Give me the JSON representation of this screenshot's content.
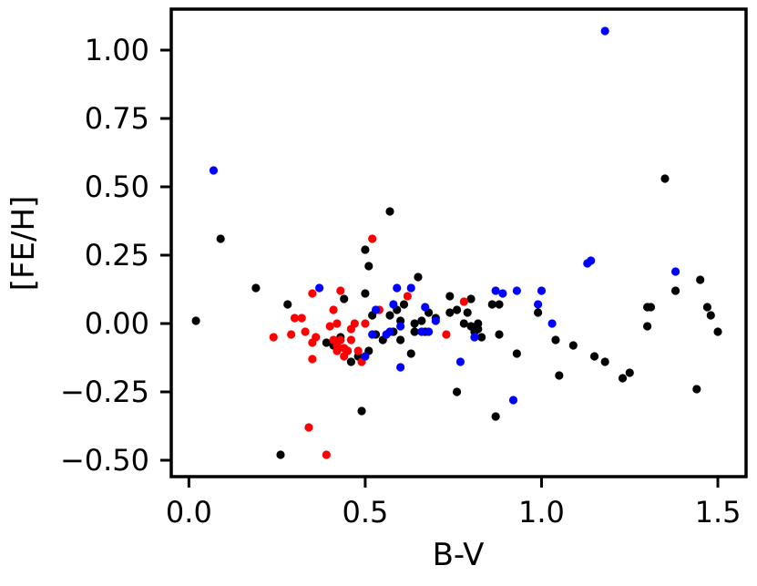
{
  "chart_data": {
    "type": "scatter",
    "title": "",
    "xlabel": "B-V",
    "ylabel": "[FE/H]",
    "xlim": [
      -0.05,
      1.58
    ],
    "ylim": [
      -0.56,
      1.15
    ],
    "xticks": [
      0.0,
      0.5,
      1.0,
      1.5
    ],
    "xtick_labels": [
      "0.0",
      "0.5",
      "1.0",
      "1.5"
    ],
    "yticks": [
      -0.5,
      -0.25,
      0.0,
      0.25,
      0.5,
      0.75,
      1.0
    ],
    "ytick_labels": [
      "−0.50",
      "−0.25",
      "0.00",
      "0.25",
      "0.50",
      "0.75",
      "1.00"
    ],
    "grid": false,
    "legend": "none",
    "series": [
      {
        "color": "#000000",
        "points": [
          [
            0.02,
            0.01
          ],
          [
            0.09,
            0.31
          ],
          [
            0.19,
            0.13
          ],
          [
            0.26,
            -0.48
          ],
          [
            0.28,
            0.07
          ],
          [
            0.39,
            -0.07
          ],
          [
            0.41,
            -0.08
          ],
          [
            0.43,
            -0.05
          ],
          [
            0.44,
            0.09
          ],
          [
            0.45,
            -0.1
          ],
          [
            0.46,
            -0.14
          ],
          [
            0.48,
            -0.12
          ],
          [
            0.49,
            -0.32
          ],
          [
            0.5,
            0.27
          ],
          [
            0.5,
            0.11
          ],
          [
            0.51,
            0.21
          ],
          [
            0.51,
            -0.1
          ],
          [
            0.52,
            0.03
          ],
          [
            0.53,
            -0.04
          ],
          [
            0.55,
            -0.06
          ],
          [
            0.57,
            0.41
          ],
          [
            0.57,
            0.03
          ],
          [
            0.58,
            -0.03
          ],
          [
            0.59,
            0.05
          ],
          [
            0.6,
            0.01
          ],
          [
            0.6,
            -0.06
          ],
          [
            0.61,
            0.07
          ],
          [
            0.63,
            -0.11
          ],
          [
            0.64,
            0.0
          ],
          [
            0.64,
            -0.03
          ],
          [
            0.65,
            0.17
          ],
          [
            0.66,
            0.01
          ],
          [
            0.67,
            -0.03
          ],
          [
            0.68,
            0.04
          ],
          [
            0.7,
            0.02
          ],
          [
            0.74,
            0.1
          ],
          [
            0.74,
            0.04
          ],
          [
            0.76,
            -0.25
          ],
          [
            0.76,
            0.05
          ],
          [
            0.78,
            0.0
          ],
          [
            0.79,
            0.04
          ],
          [
            0.8,
            -0.01
          ],
          [
            0.8,
            0.09
          ],
          [
            0.81,
            -0.03
          ],
          [
            0.82,
            0.0
          ],
          [
            0.82,
            -0.02
          ],
          [
            0.83,
            -0.05
          ],
          [
            0.86,
            0.07
          ],
          [
            0.87,
            -0.34
          ],
          [
            0.88,
            -0.04
          ],
          [
            0.88,
            0.07
          ],
          [
            0.93,
            -0.11
          ],
          [
            0.99,
            0.04
          ],
          [
            1.04,
            -0.06
          ],
          [
            1.05,
            -0.19
          ],
          [
            1.09,
            -0.08
          ],
          [
            1.15,
            -0.12
          ],
          [
            1.18,
            -0.14
          ],
          [
            1.23,
            -0.2
          ],
          [
            1.25,
            -0.18
          ],
          [
            1.3,
            -0.01
          ],
          [
            1.3,
            0.06
          ],
          [
            1.31,
            0.06
          ],
          [
            1.35,
            0.53
          ],
          [
            1.38,
            0.12
          ],
          [
            1.44,
            -0.24
          ],
          [
            1.45,
            0.16
          ],
          [
            1.47,
            0.06
          ],
          [
            1.48,
            0.03
          ],
          [
            1.5,
            -0.03
          ]
        ]
      },
      {
        "color": "#ff0000",
        "points": [
          [
            0.24,
            -0.05
          ],
          [
            0.29,
            -0.04
          ],
          [
            0.3,
            0.02
          ],
          [
            0.32,
            0.02
          ],
          [
            0.33,
            -0.03
          ],
          [
            0.34,
            -0.38
          ],
          [
            0.35,
            0.11
          ],
          [
            0.35,
            -0.07
          ],
          [
            0.35,
            -0.13
          ],
          [
            0.36,
            -0.05
          ],
          [
            0.39,
            -0.48
          ],
          [
            0.4,
            -0.01
          ],
          [
            0.41,
            0.05
          ],
          [
            0.41,
            -0.06
          ],
          [
            0.42,
            -0.08
          ],
          [
            0.42,
            -0.1
          ],
          [
            0.42,
            0.0
          ],
          [
            0.43,
            -0.06
          ],
          [
            0.43,
            0.12
          ],
          [
            0.44,
            -0.09
          ],
          [
            0.44,
            -0.12
          ],
          [
            0.45,
            -0.1
          ],
          [
            0.46,
            -0.06
          ],
          [
            0.46,
            -0.02
          ],
          [
            0.47,
            0.0
          ],
          [
            0.48,
            -0.1
          ],
          [
            0.49,
            -0.14
          ],
          [
            0.5,
            0.0
          ],
          [
            0.52,
            0.31
          ],
          [
            0.54,
            0.05
          ],
          [
            0.62,
            0.1
          ],
          [
            0.73,
            -0.04
          ],
          [
            0.78,
            0.08
          ]
        ]
      },
      {
        "color": "#0000ff",
        "points": [
          [
            0.07,
            0.56
          ],
          [
            0.37,
            0.13
          ],
          [
            0.5,
            -0.12
          ],
          [
            0.52,
            -0.04
          ],
          [
            0.53,
            0.05
          ],
          [
            0.56,
            -0.04
          ],
          [
            0.57,
            -0.03
          ],
          [
            0.58,
            0.07
          ],
          [
            0.59,
            0.13
          ],
          [
            0.6,
            -0.01
          ],
          [
            0.6,
            -0.16
          ],
          [
            0.63,
            0.13
          ],
          [
            0.66,
            -0.03
          ],
          [
            0.67,
            0.06
          ],
          [
            0.68,
            -0.03
          ],
          [
            0.7,
            0.01
          ],
          [
            0.77,
            -0.14
          ],
          [
            0.81,
            -0.05
          ],
          [
            0.87,
            0.12
          ],
          [
            0.89,
            0.11
          ],
          [
            0.92,
            -0.28
          ],
          [
            0.93,
            0.12
          ],
          [
            0.99,
            0.07
          ],
          [
            1.0,
            0.12
          ],
          [
            1.03,
            0.0
          ],
          [
            1.13,
            0.22
          ],
          [
            1.14,
            0.23
          ],
          [
            1.18,
            1.07
          ],
          [
            1.38,
            0.19
          ]
        ]
      }
    ]
  }
}
